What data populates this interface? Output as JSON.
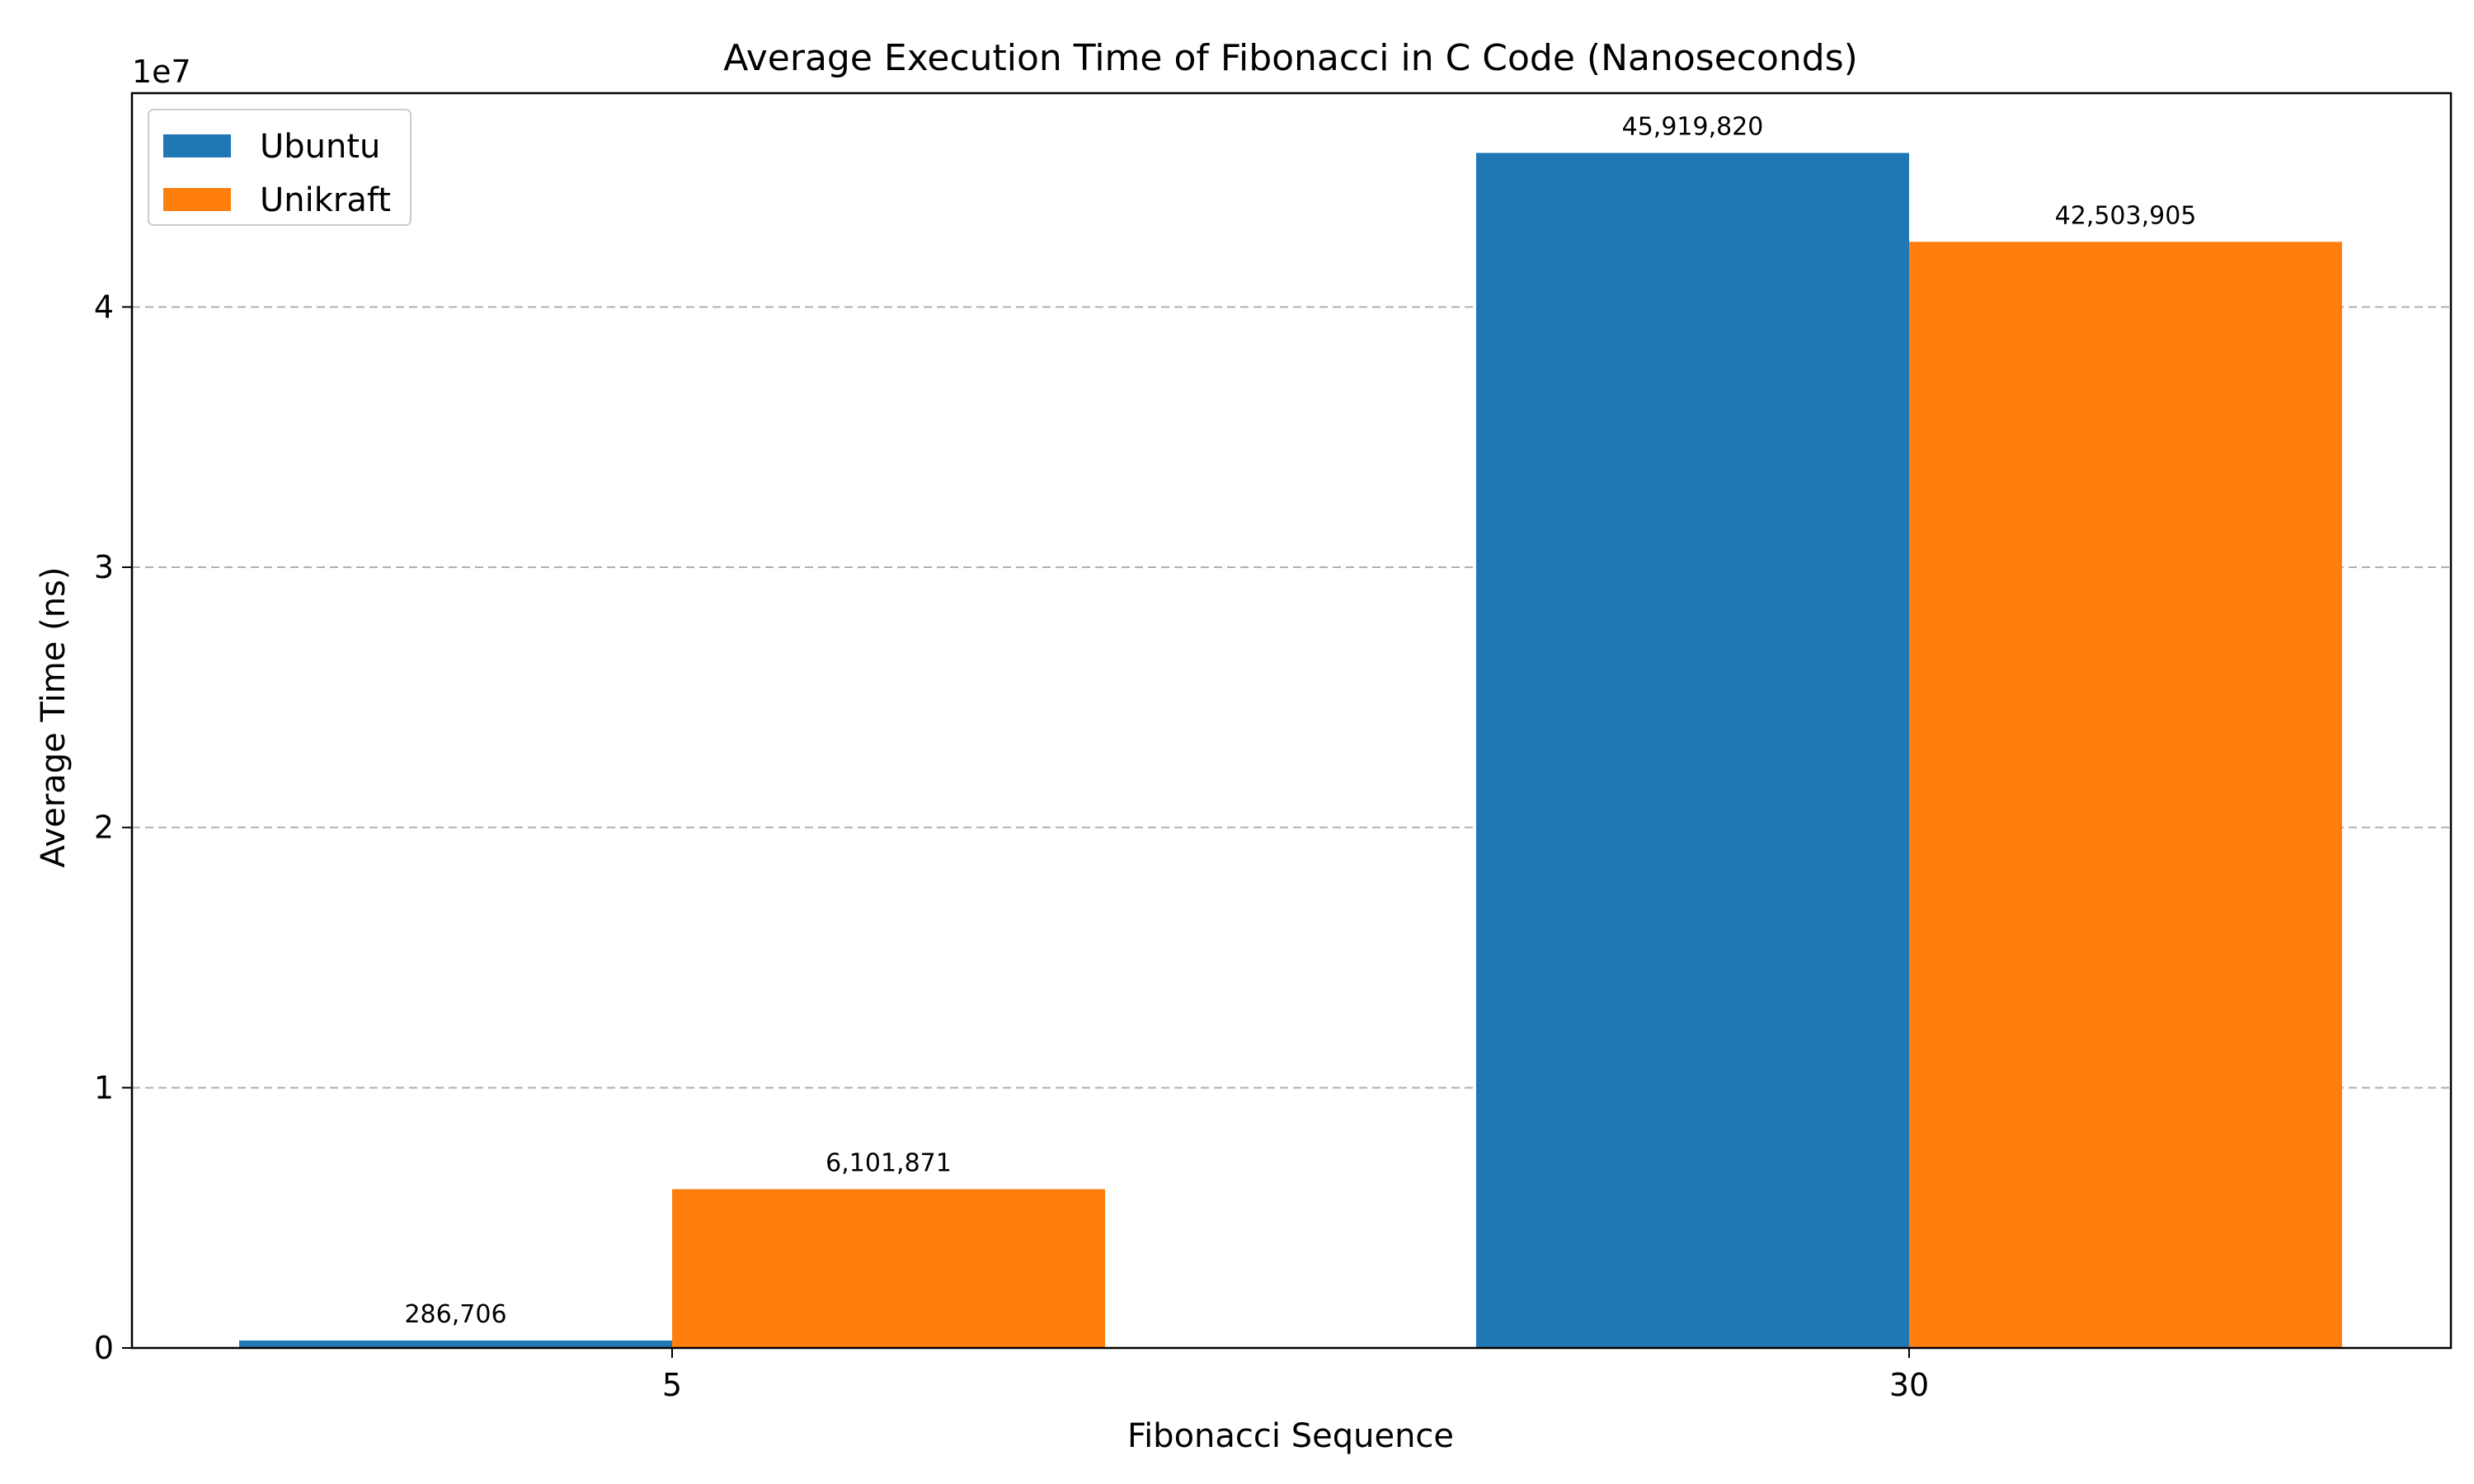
{
  "chart_data": {
    "type": "bar",
    "title": "Average Execution Time of Fibonacci in C Code (Nanoseconds)",
    "xlabel": "Fibonacci Sequence",
    "ylabel": "Average Time (ns)",
    "y_offset_label": "1e7",
    "categories": [
      "5",
      "30"
    ],
    "series": [
      {
        "name": "Ubuntu",
        "color": "#1f77b4",
        "values": [
          286706,
          45919820
        ],
        "labels": [
          "286,706",
          "45,919,820"
        ]
      },
      {
        "name": "Unikraft",
        "color": "#ff7f0e",
        "values": [
          6101871,
          42503905
        ],
        "labels": [
          "6,101,871",
          "42,503,905"
        ]
      }
    ],
    "ylim": [
      0,
      48216000
    ],
    "yticks": [
      0,
      10000000,
      20000000,
      30000000,
      40000000
    ],
    "ytick_labels": [
      "0",
      "1",
      "2",
      "3",
      "4"
    ],
    "grid": "y-dashed",
    "legend_position": "top-left"
  }
}
